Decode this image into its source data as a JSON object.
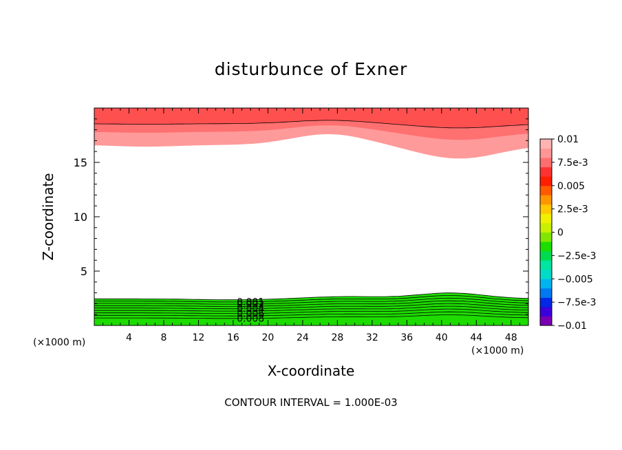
{
  "chart_data": {
    "type": "contour",
    "title": "disturbunce of Exner",
    "xlabel": "X-coordinate",
    "ylabel": "Z-coordinate",
    "x_unit": "(×1000 m)",
    "xlim": [
      0,
      50
    ],
    "ylim": [
      0,
      20
    ],
    "x_ticks": [
      4,
      8,
      12,
      16,
      20,
      24,
      28,
      32,
      36,
      40,
      44,
      48
    ],
    "y_ticks": [
      5,
      10,
      15
    ],
    "contour_interval_text": "CONTOUR INTERVAL = 1.000E-03",
    "contour_labels": [
      "0.008",
      "0.006",
      "0.004",
      "0.002",
      "0.001"
    ],
    "colorbar": {
      "labels": [
        "0.01",
        "7.5e-3",
        "0.005",
        "2.5e-3",
        "0",
        "−2.5e-3",
        "−0.005",
        "−7.5e-3",
        "−0.01"
      ],
      "range": [
        -0.01,
        0.01
      ],
      "colors": [
        "#7a00b4",
        "#3c00dc",
        "#0028e6",
        "#0078f0",
        "#00b4f0",
        "#00dcc8",
        "#00e6a0",
        "#00dc50",
        "#1edc00",
        "#82e600",
        "#c8f000",
        "#f0f000",
        "#ffc800",
        "#ff9600",
        "#ff5a00",
        "#ff1e00",
        "#ff3232",
        "#ff6e6e",
        "#ff9696",
        "#ffb4b4"
      ]
    },
    "bottom_band_levels": [
      0.009,
      0.008,
      0.007,
      0.006,
      0.005,
      0.004,
      0.003,
      0.002,
      0.001,
      0.0
    ],
    "bottom_band_colors": [
      "#ff9a9a",
      "#ff5050",
      "#ff1a00",
      "#ff5a00",
      "#ff9600",
      "#ffc800",
      "#f0f000",
      "#c8f000",
      "#82e600",
      "#1edc00"
    ],
    "top_band_levels": [
      0.009,
      0.01,
      0.011
    ],
    "top_band_colors": [
      "#ff9a9a",
      "#ff7070",
      "#ff5050"
    ]
  }
}
